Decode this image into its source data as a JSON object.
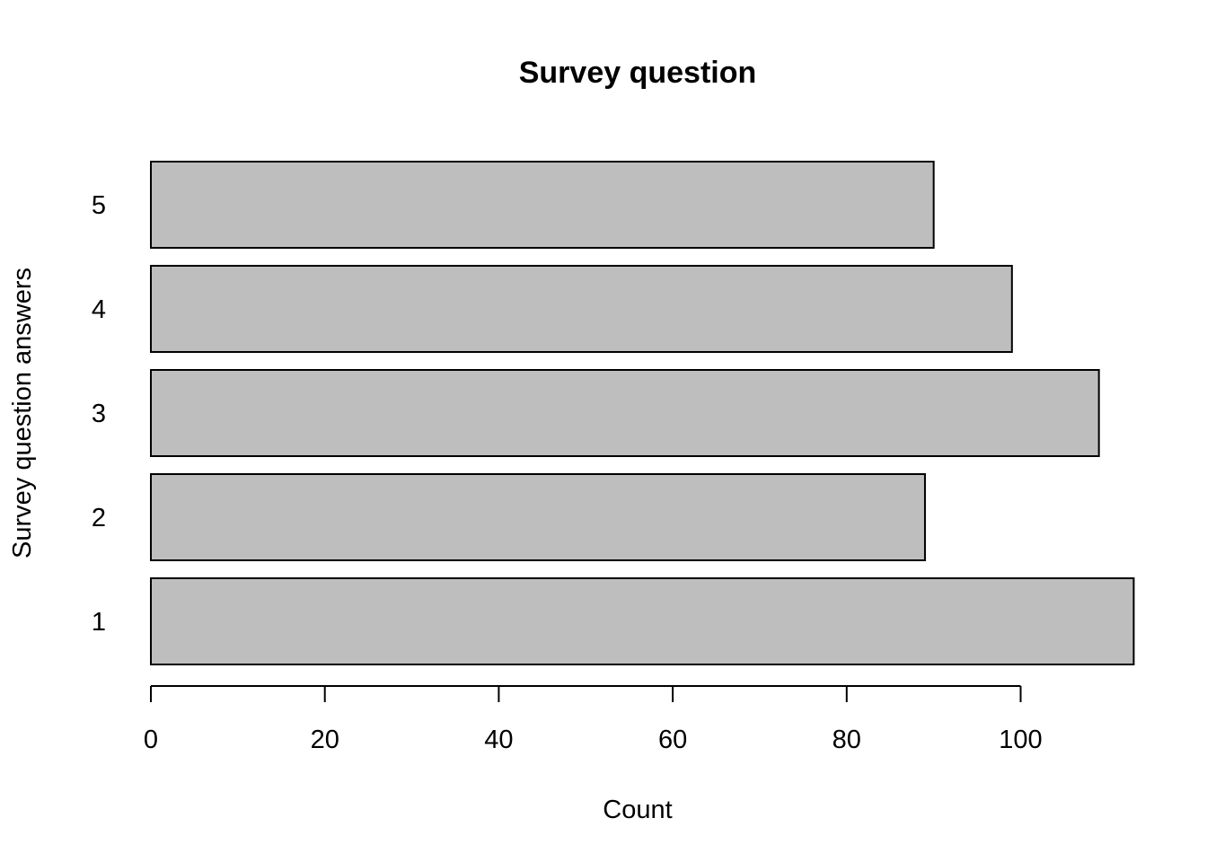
{
  "chart_data": {
    "type": "bar",
    "orientation": "horizontal",
    "title": "Survey question",
    "xlabel": "Count",
    "ylabel": "Survey question answers",
    "categories": [
      "1",
      "2",
      "3",
      "4",
      "5"
    ],
    "values": [
      113,
      89,
      109,
      99,
      90
    ],
    "xlim": [
      0,
      113
    ],
    "xticks": [
      0,
      20,
      40,
      60,
      80,
      100
    ],
    "xtick_labels": [
      "0",
      "20",
      "40",
      "60",
      "80",
      "100"
    ],
    "bar_color": "#bebebe",
    "bar_border_color": "#000000",
    "grid": false,
    "legend": "none"
  }
}
